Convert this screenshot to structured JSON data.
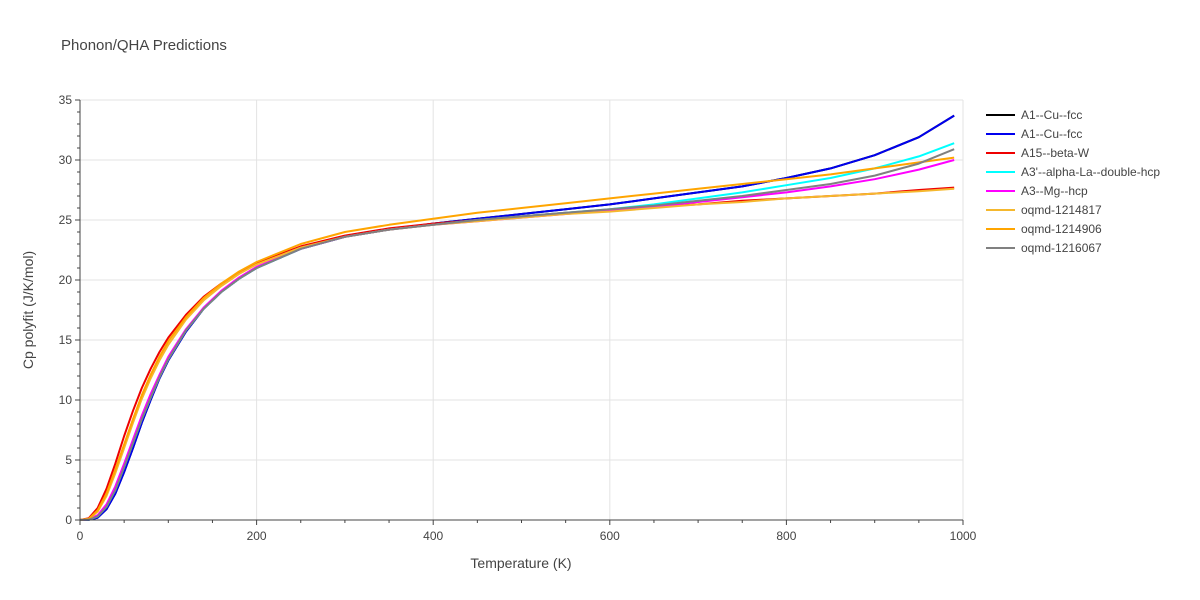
{
  "chart_data": {
    "type": "line",
    "title": "Phonon/QHA Predictions",
    "xlabel": "Temperature (K)",
    "ylabel": "Cp polyfit (J/K/mol)",
    "xlim": [
      0,
      1000
    ],
    "ylim": [
      0,
      35
    ],
    "xticks": [
      0,
      200,
      400,
      600,
      800,
      1000
    ],
    "yticks": [
      0,
      5,
      10,
      15,
      20,
      25,
      30,
      35
    ],
    "grid": true,
    "legend_position": "right",
    "x": [
      0,
      10,
      20,
      30,
      40,
      50,
      60,
      70,
      80,
      90,
      100,
      120,
      140,
      160,
      180,
      200,
      250,
      300,
      350,
      400,
      450,
      500,
      550,
      600,
      650,
      700,
      750,
      800,
      850,
      900,
      950,
      990
    ],
    "series": [
      {
        "name": "A1--Cu--fcc",
        "color": "#000000",
        "values": [
          0,
          0.02,
          0.2,
          0.9,
          2.2,
          4.0,
          6.0,
          8.1,
          10.0,
          11.8,
          13.3,
          15.7,
          17.6,
          19.0,
          20.1,
          21.0,
          22.6,
          23.6,
          24.2,
          24.7,
          25.1,
          25.5,
          25.9,
          26.3,
          26.8,
          27.3,
          27.8,
          28.5,
          29.3,
          30.4,
          31.9,
          33.7
        ]
      },
      {
        "name": "A1--Cu--fcc",
        "color": "#0000ee",
        "values": [
          0,
          0.02,
          0.2,
          0.9,
          2.2,
          4.0,
          6.0,
          8.1,
          10.0,
          11.8,
          13.3,
          15.7,
          17.6,
          19.0,
          20.1,
          21.0,
          22.6,
          23.6,
          24.2,
          24.7,
          25.1,
          25.5,
          25.9,
          26.3,
          26.8,
          27.3,
          27.8,
          28.5,
          29.3,
          30.4,
          31.9,
          33.7
        ]
      },
      {
        "name": "A15--beta-W",
        "color": "#ee0000",
        "values": [
          0,
          0.15,
          1.0,
          2.6,
          4.7,
          7.0,
          9.1,
          11.0,
          12.6,
          14.0,
          15.2,
          17.1,
          18.6,
          19.7,
          20.6,
          21.4,
          22.8,
          23.7,
          24.3,
          24.7,
          25.0,
          25.3,
          25.6,
          25.8,
          26.1,
          26.3,
          26.6,
          26.8,
          27.0,
          27.2,
          27.5,
          27.7
        ]
      },
      {
        "name": "A3'--alpha-La--double-hcp",
        "color": "#00ffff",
        "values": [
          0,
          0.03,
          0.3,
          1.1,
          2.5,
          4.4,
          6.4,
          8.4,
          10.2,
          11.9,
          13.4,
          15.8,
          17.6,
          19.0,
          20.1,
          21.0,
          22.6,
          23.6,
          24.2,
          24.6,
          25.0,
          25.3,
          25.6,
          25.9,
          26.3,
          26.8,
          27.3,
          27.9,
          28.5,
          29.3,
          30.3,
          31.4
        ]
      },
      {
        "name": "A3--Mg--hcp",
        "color": "#ff00ff",
        "values": [
          0,
          0.04,
          0.4,
          1.3,
          2.8,
          4.7,
          6.7,
          8.7,
          10.5,
          12.1,
          13.6,
          15.9,
          17.7,
          19.1,
          20.2,
          21.1,
          22.6,
          23.6,
          24.2,
          24.6,
          24.9,
          25.2,
          25.5,
          25.8,
          26.1,
          26.5,
          26.9,
          27.3,
          27.8,
          28.4,
          29.2,
          30.0
        ]
      },
      {
        "name": "oqmd-1214817",
        "color": "#f5b82e",
        "values": [
          0,
          0.08,
          0.7,
          2.0,
          3.9,
          6.0,
          8.1,
          10.1,
          11.8,
          13.3,
          14.6,
          16.7,
          18.3,
          19.5,
          20.5,
          21.3,
          22.7,
          23.6,
          24.2,
          24.6,
          24.9,
          25.2,
          25.5,
          25.7,
          26.0,
          26.3,
          26.5,
          26.8,
          27.0,
          27.2,
          27.4,
          27.6
        ]
      },
      {
        "name": "oqmd-1214906",
        "color": "#ffa500",
        "values": [
          0,
          0.1,
          0.8,
          2.2,
          4.2,
          6.3,
          8.4,
          10.4,
          12.1,
          13.6,
          14.9,
          16.9,
          18.5,
          19.7,
          20.7,
          21.5,
          23.0,
          24.0,
          24.6,
          25.1,
          25.6,
          26.0,
          26.4,
          26.8,
          27.2,
          27.6,
          28.0,
          28.4,
          28.8,
          29.3,
          29.8,
          30.2
        ]
      },
      {
        "name": "oqmd-1216067",
        "color": "#808080",
        "values": [
          0,
          0.03,
          0.3,
          1.1,
          2.5,
          4.4,
          6.4,
          8.4,
          10.2,
          11.9,
          13.4,
          15.8,
          17.6,
          19.0,
          20.1,
          21.0,
          22.6,
          23.6,
          24.2,
          24.6,
          25.0,
          25.3,
          25.6,
          25.9,
          26.2,
          26.6,
          27.0,
          27.5,
          28.0,
          28.7,
          29.7,
          30.9
        ]
      }
    ]
  }
}
